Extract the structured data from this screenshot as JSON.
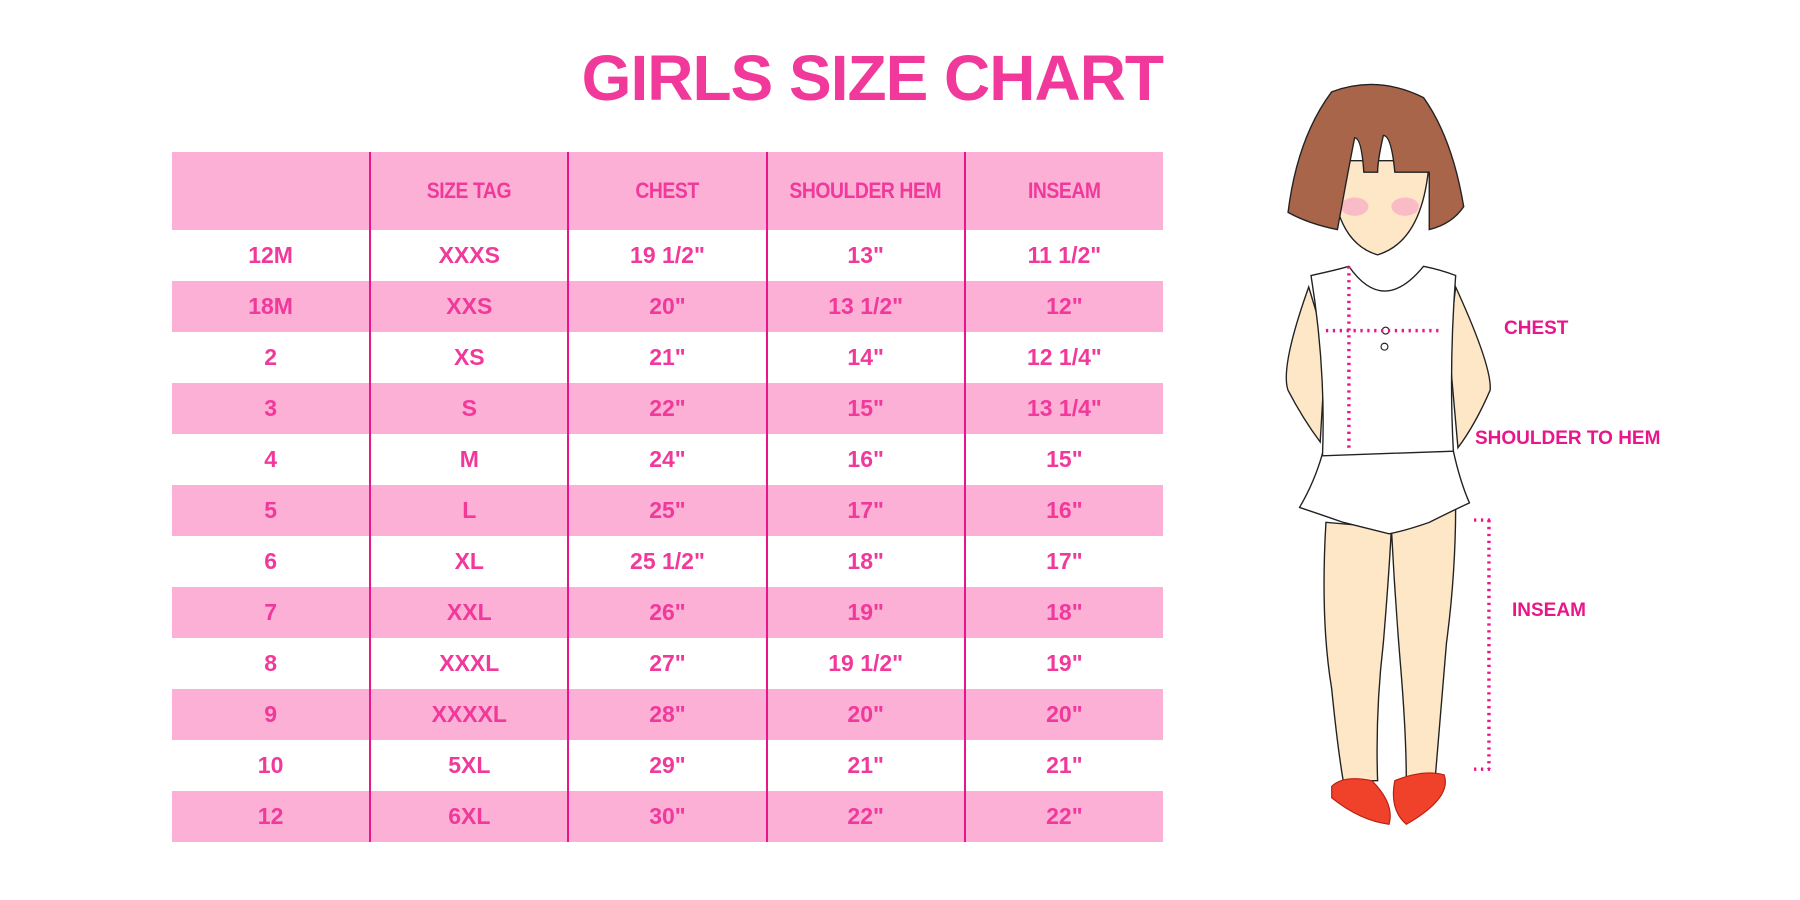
{
  "title": "GIRLS SIZE CHART",
  "table": {
    "headers": [
      "",
      "SIZE TAG",
      "CHEST",
      "SHOULDER HEM",
      "INSEAM"
    ],
    "rows": [
      [
        "12M",
        "XXXS",
        "19 1/2\"",
        "13\"",
        "11 1/2\""
      ],
      [
        "18M",
        "XXS",
        "20\"",
        "13 1/2\"",
        "12\""
      ],
      [
        "2",
        "XS",
        "21\"",
        "14\"",
        "12 1/4\""
      ],
      [
        "3",
        "S",
        "22\"",
        "15\"",
        "13 1/4\""
      ],
      [
        "4",
        "M",
        "24\"",
        "16\"",
        "15\""
      ],
      [
        "5",
        "L",
        "25\"",
        "17\"",
        "16\""
      ],
      [
        "6",
        "XL",
        "25 1/2\"",
        "18\"",
        "17\""
      ],
      [
        "7",
        "XXL",
        "26\"",
        "19\"",
        "18\""
      ],
      [
        "8",
        "XXXL",
        "27\"",
        "19 1/2\"",
        "19\""
      ],
      [
        "9",
        "XXXXL",
        "28\"",
        "20\"",
        "20\""
      ],
      [
        "10",
        "5XL",
        "29\"",
        "21\"",
        "21\""
      ],
      [
        "12",
        "6XL",
        "30\"",
        "22\"",
        "22\""
      ]
    ]
  },
  "figure": {
    "labels": {
      "chest": "CHEST",
      "shoulder_to_hem": "SHOULDER TO HEM",
      "inseam": "INSEAM"
    }
  },
  "colors": {
    "accent": "#f0399a",
    "band": "#fcb0d6",
    "divider": "#e8168a"
  }
}
